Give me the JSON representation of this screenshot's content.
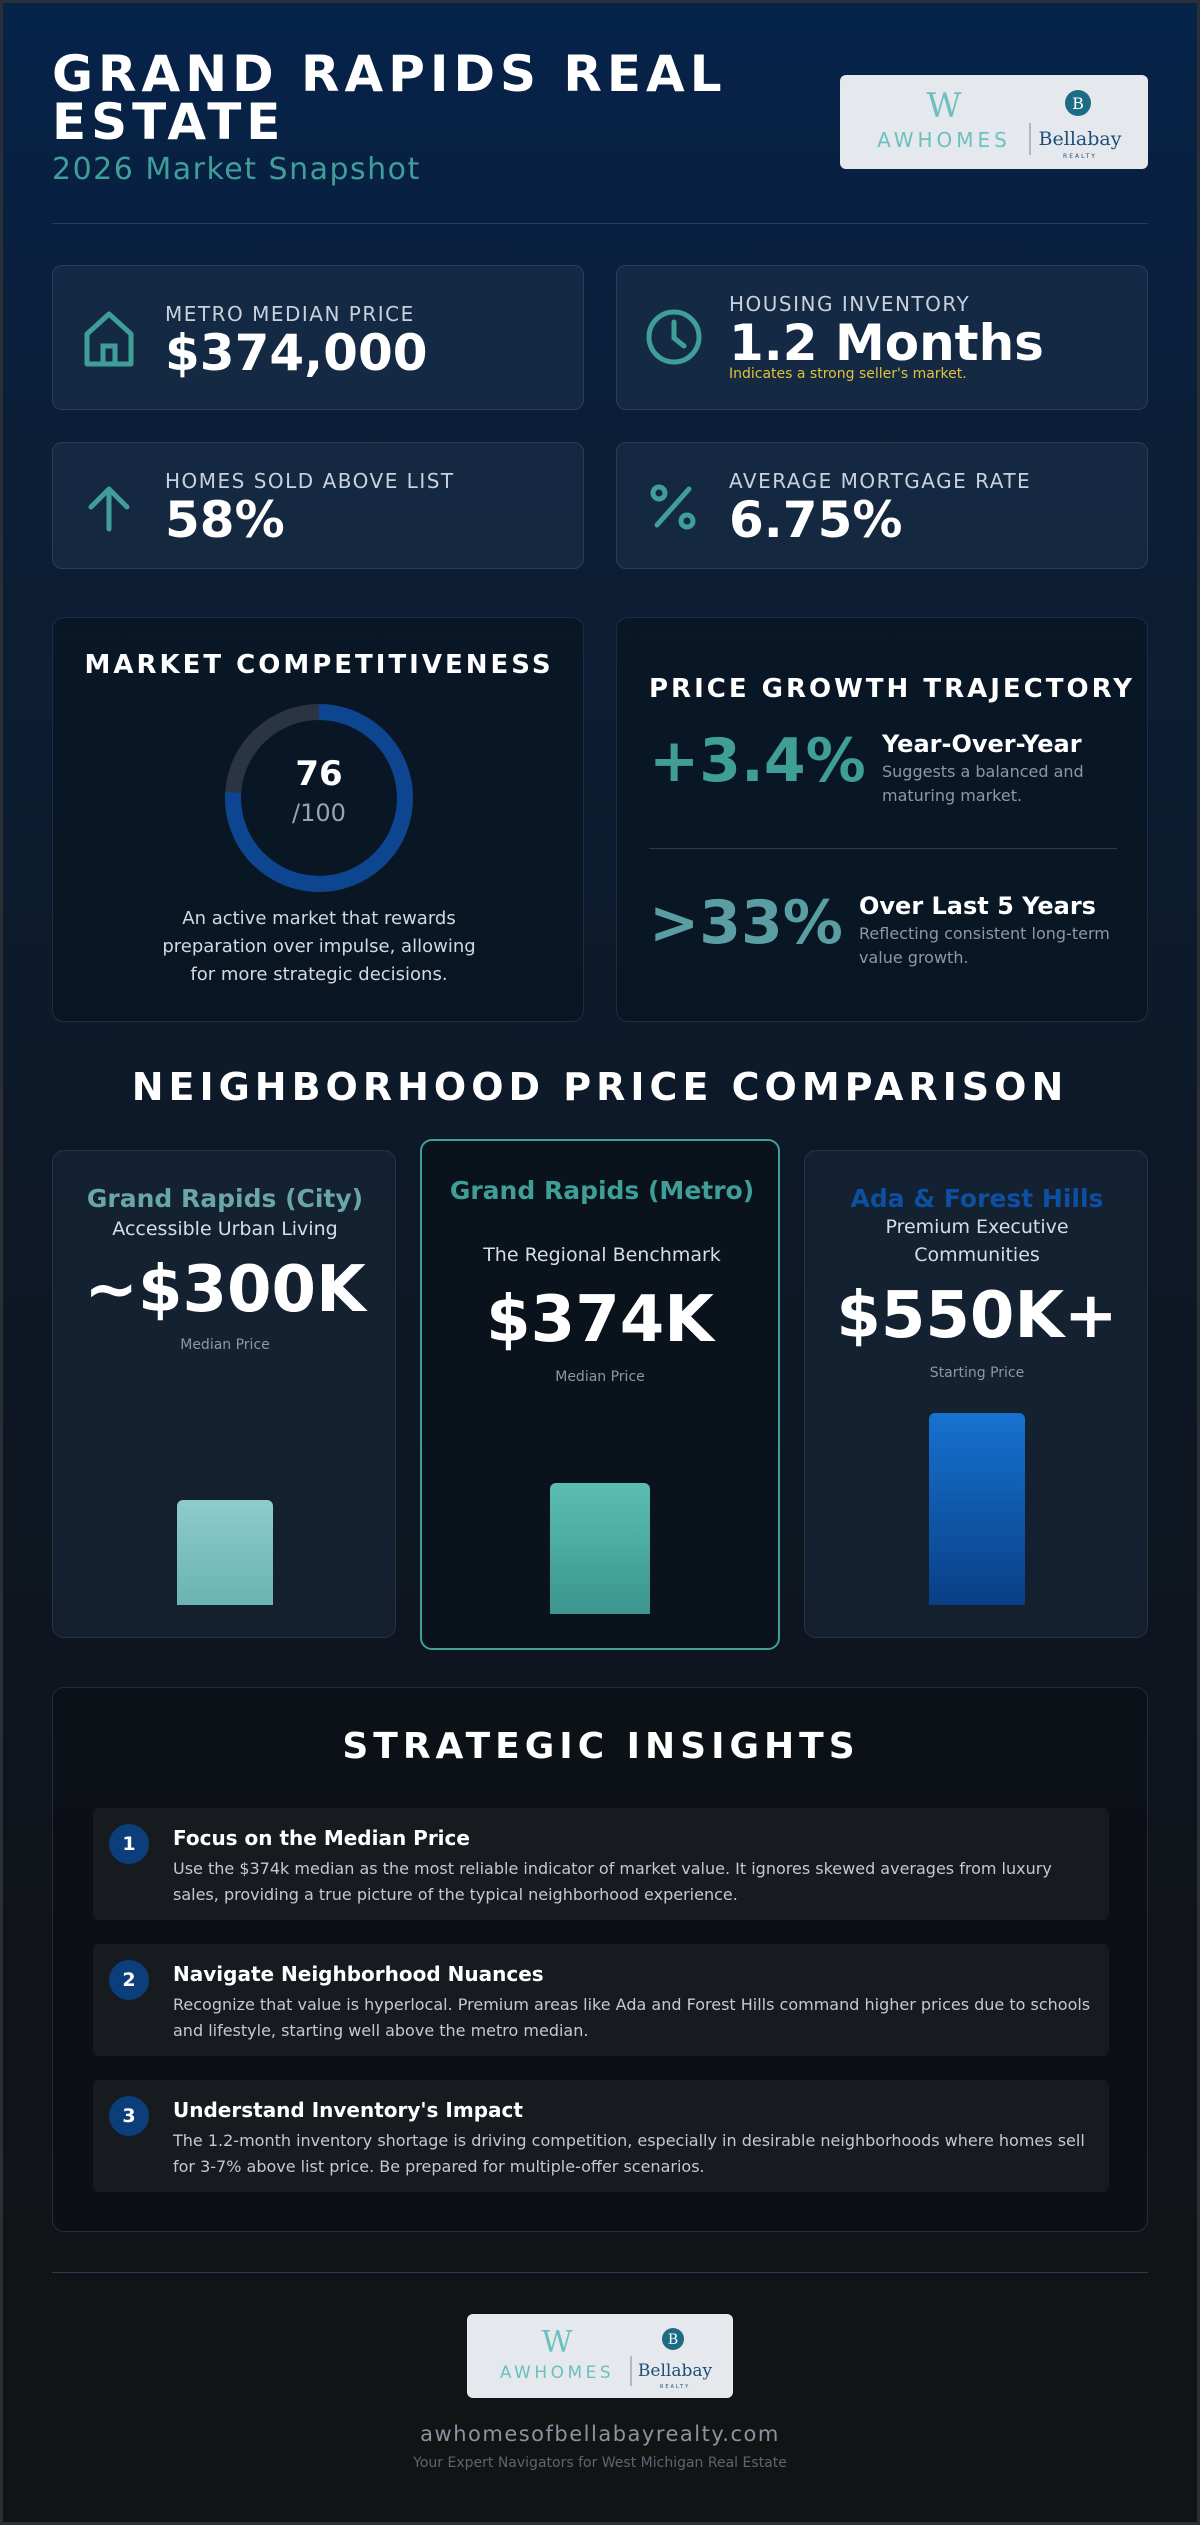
{
  "header": {
    "title": "GRAND RAPIDS REAL ESTATE",
    "subtitle": "2026 Market Snapshot"
  },
  "logo": {
    "brand_a": "AWHOMES",
    "brand_b": "Bellabay",
    "brand_b_tag": "REALTY",
    "seal_letter": "B",
    "mark_letter": "W"
  },
  "stats": [
    {
      "icon": "house-icon",
      "label": "METRO MEDIAN PRICE",
      "value": "$374,000",
      "note": ""
    },
    {
      "icon": "clock-icon",
      "label": "HOUSING INVENTORY",
      "value": "1.2 Months",
      "note": "Indicates a strong seller's market."
    },
    {
      "icon": "arrow-up-icon",
      "label": "HOMES SOLD ABOVE LIST",
      "value": "58%",
      "note": ""
    },
    {
      "icon": "percent-icon",
      "label": "AVERAGE MORTGAGE RATE",
      "value": "6.75%",
      "note": ""
    }
  ],
  "competitiveness": {
    "title": "MARKET COMPETITIVENESS",
    "score": 76,
    "score_text": "76",
    "out_of": "/100",
    "description": "An active market that rewards preparation over impulse, allowing for more strategic decisions."
  },
  "growth": {
    "title": "PRICE GROWTH TRAJECTORY",
    "items": [
      {
        "value": "+3.4%",
        "heading": "Year-Over-Year",
        "text": "Suggests a balanced and maturing market."
      },
      {
        "value": ">33%",
        "heading": "Over Last 5 Years",
        "text": "Reflecting consistent long-term value growth."
      }
    ]
  },
  "neighborhoods": {
    "title": "NEIGHBORHOOD PRICE COMPARISON",
    "items": [
      {
        "name": "Grand Rapids (City)",
        "sub": "Accessible Urban Living",
        "price": "~$300K",
        "caption": "Median Price",
        "bar_value": 300,
        "color": "#5aa6a6"
      },
      {
        "name": "Grand Rapids (Metro)",
        "sub": "The Regional Benchmark",
        "price": "$374K",
        "caption": "Median Price",
        "bar_value": 374,
        "color": "#3f9f98"
      },
      {
        "name": "Ada & Forest Hills",
        "sub": "Premium Executive Communities",
        "price": "$550K+",
        "caption": "Starting Price",
        "bar_value": 550,
        "color": "#0d4fa0"
      }
    ]
  },
  "insights": {
    "title": "STRATEGIC INSIGHTS",
    "items": [
      {
        "num": "1",
        "title": "Focus on the Median Price",
        "body": "Use the $374k median as the most reliable indicator of market value. It ignores skewed averages from luxury sales, providing a true picture of the typical neighborhood experience."
      },
      {
        "num": "2",
        "title": "Navigate Neighborhood Nuances",
        "body": "Recognize that value is hyperlocal. Premium areas like Ada and Forest Hills command higher prices due to schools and lifestyle, starting well above the metro median."
      },
      {
        "num": "3",
        "title": "Understand Inventory's Impact",
        "body": "The 1.2-month inventory shortage is driving competition, especially in desirable neighborhoods where homes sell for 3-7% above list price. Be prepared for multiple-offer scenarios."
      }
    ]
  },
  "footer": {
    "url": "awhomesofbellabayrealty.com",
    "tagline": "Your Expert Navigators for West Michigan Real Estate"
  }
}
